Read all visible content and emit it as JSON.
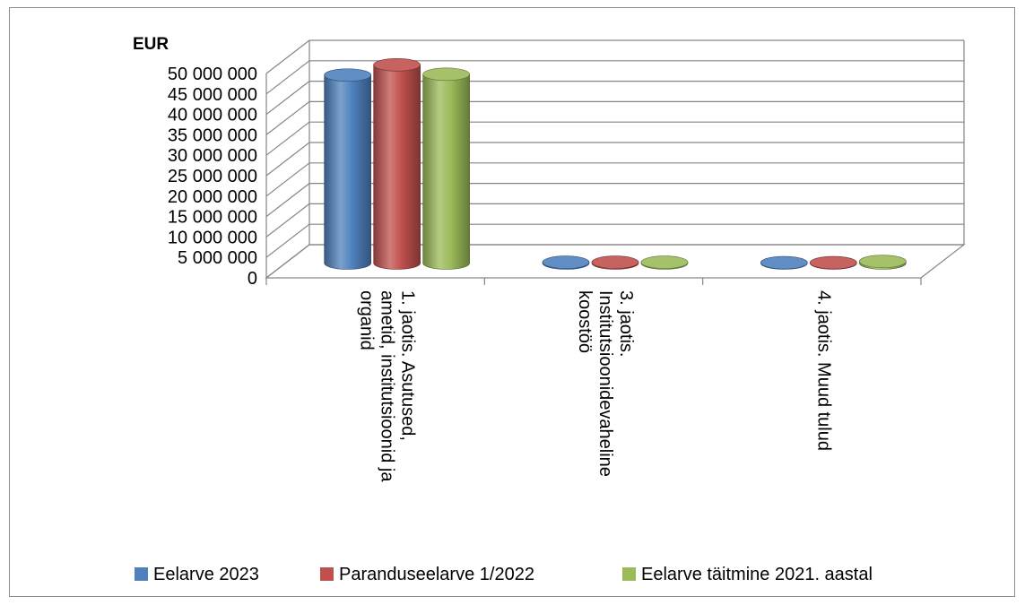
{
  "chart_data": {
    "type": "bar",
    "unit_label": "EUR",
    "categories": [
      [
        "1. jaotis. Asutused,",
        "ametid, institutsioonid ja",
        "organid"
      ],
      [
        "3. jaotis.",
        "Institutsioonidevaheline",
        "koostöö"
      ],
      [
        "4. jaotis. Muud tulud"
      ]
    ],
    "series": [
      {
        "name": "Eelarve 2023",
        "color": "#4f81bd",
        "values": [
          46000000,
          200000,
          100000
        ]
      },
      {
        "name": "Paranduseelarve 1/2022",
        "color": "#c0504d",
        "values": [
          48500000,
          200000,
          100000
        ]
      },
      {
        "name": "Eelarve täitmine 2021. aastal",
        "color": "#9bbb59",
        "values": [
          46200000,
          200000,
          400000
        ]
      }
    ],
    "ylim": [
      0,
      50000000
    ],
    "y_ticks": [
      "0",
      "5 000 000",
      "10 000 000",
      "15 000 000",
      "20 000 000",
      "25 000 000",
      "30 000 000",
      "35 000 000",
      "40 000 000",
      "45 000 000",
      "50 000 000"
    ],
    "grid": true,
    "legend_position": "bottom",
    "style": "3d-cylinder"
  }
}
